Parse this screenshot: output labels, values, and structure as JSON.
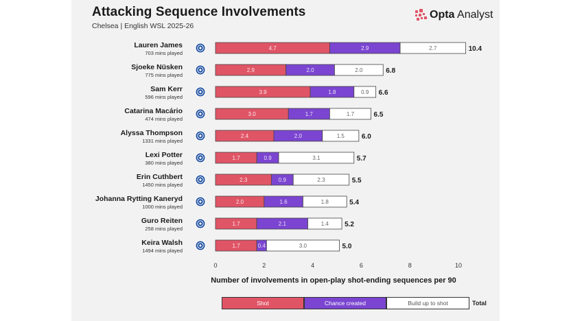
{
  "header": {
    "title": "Attacking Sequence Involvements",
    "subtitle": "Chelsea | English WSL 2025-26",
    "brand": "Opta",
    "brand_suffix": "Analyst"
  },
  "colors": {
    "shot": "#e05566",
    "chance": "#7b45d1",
    "buildup": "#ffffff",
    "background": "#f2f2f2",
    "badge": "#1d4fa0"
  },
  "legend": {
    "shot": "Shot",
    "chance": "Chance created",
    "buildup": "Build up to shot",
    "total": "Total"
  },
  "chart_data": {
    "type": "bar",
    "orientation": "horizontal",
    "stacked": true,
    "xlabel": "Number of involvements in open-play shot-ending sequences per 90",
    "xlim": [
      0,
      10.5
    ],
    "xticks": [
      0,
      2,
      4,
      6,
      8,
      10
    ],
    "categories": [
      "Lauren James",
      "Sjoeke Nüsken",
      "Sam Kerr",
      "Catarina Macário",
      "Alyssa Thompson",
      "Lexi Potter",
      "Erin Cuthbert",
      "Johanna Rytting Kaneryd",
      "Guro Reiten",
      "Keira Walsh"
    ],
    "minutes": [
      "703 mins played",
      "775 mins played",
      "596 mins played",
      "474 mins played",
      "1331 mins played",
      "380 mins played",
      "1450 mins played",
      "1000 mins played",
      "258 mins played",
      "1494 mins played"
    ],
    "series": [
      {
        "name": "Shot",
        "values": [
          4.7,
          2.9,
          3.9,
          3.0,
          2.4,
          1.7,
          2.3,
          2.0,
          1.7,
          1.7
        ]
      },
      {
        "name": "Chance created",
        "values": [
          2.9,
          2.0,
          1.8,
          1.7,
          2.0,
          0.9,
          0.9,
          1.6,
          2.1,
          0.4
        ]
      },
      {
        "name": "Build up to shot",
        "values": [
          2.7,
          2.0,
          0.9,
          1.7,
          1.5,
          3.1,
          2.3,
          1.8,
          1.4,
          3.0
        ]
      }
    ],
    "totals": [
      10.4,
      6.8,
      6.6,
      6.5,
      6.0,
      5.7,
      5.5,
      5.4,
      5.2,
      5.0
    ],
    "legend_position": "bottom"
  }
}
